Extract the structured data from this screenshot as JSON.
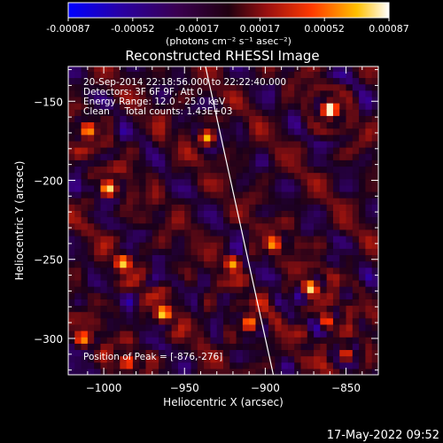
{
  "chart_data": {
    "type": "heatmap",
    "title": "Reconstructed RHESSI Image",
    "xlabel": "Heliocentric X (arcsec)",
    "ylabel": "Heliocentric Y (arcsec)",
    "xlim": [
      -1022,
      -830
    ],
    "ylim": [
      -323,
      -128
    ],
    "xticks": [
      -1000,
      -950,
      -900,
      -850
    ],
    "yticks": [
      -150,
      -200,
      -250,
      -300
    ],
    "colorbar": {
      "ticks": [
        "-0.00087",
        "-0.00052",
        "-0.00017",
        "0.00017",
        "0.00052",
        "0.00087"
      ],
      "range": [
        -0.00087,
        0.00087
      ],
      "unit_label": "(photons cm⁻² s⁻¹ asec⁻²)",
      "colors": [
        "#0000ff",
        "#3a0088",
        "#1a001a",
        "#8a1010",
        "#ff3000",
        "#ffc800",
        "#ffffff"
      ]
    },
    "annotations": [
      "20-Sep-2014 22:18:56.000 to 22:22:40.000",
      "Detectors: 3F 6F 9F, Att 0",
      "Energy Range: 12.0 - 25.0 keV",
      "Clean     Total counts: 1.43E+03"
    ],
    "peak_label": "Position of Peak = [-876,-276]",
    "peak_position": [
      -876,
      -276
    ],
    "limb_line": [
      [
        -937,
        -128
      ],
      [
        -895,
        -323
      ]
    ],
    "grid": false,
    "blobs": [
      {
        "x": -860,
        "y": -155,
        "v": 0.00087
      },
      {
        "x": -872,
        "y": -268,
        "v": 0.0008
      },
      {
        "x": -862,
        "y": -289,
        "v": 0.0007
      },
      {
        "x": -997,
        "y": -205,
        "v": 0.0007
      },
      {
        "x": -1010,
        "y": -168,
        "v": 0.00062
      },
      {
        "x": -963,
        "y": -284,
        "v": 0.00068
      },
      {
        "x": -936,
        "y": -173,
        "v": 0.0006
      },
      {
        "x": -988,
        "y": -252,
        "v": 0.00058
      },
      {
        "x": -920,
        "y": -252,
        "v": 0.00055
      },
      {
        "x": -850,
        "y": -310,
        "v": 0.00065
      },
      {
        "x": -895,
        "y": -240,
        "v": 0.0005
      },
      {
        "x": -910,
        "y": -290,
        "v": 0.0006
      },
      {
        "x": -1013,
        "y": -300,
        "v": 0.0005
      },
      {
        "x": -985,
        "y": -315,
        "v": 0.00055
      }
    ]
  },
  "footer": {
    "timestamp": "17-May-2022 09:52"
  }
}
